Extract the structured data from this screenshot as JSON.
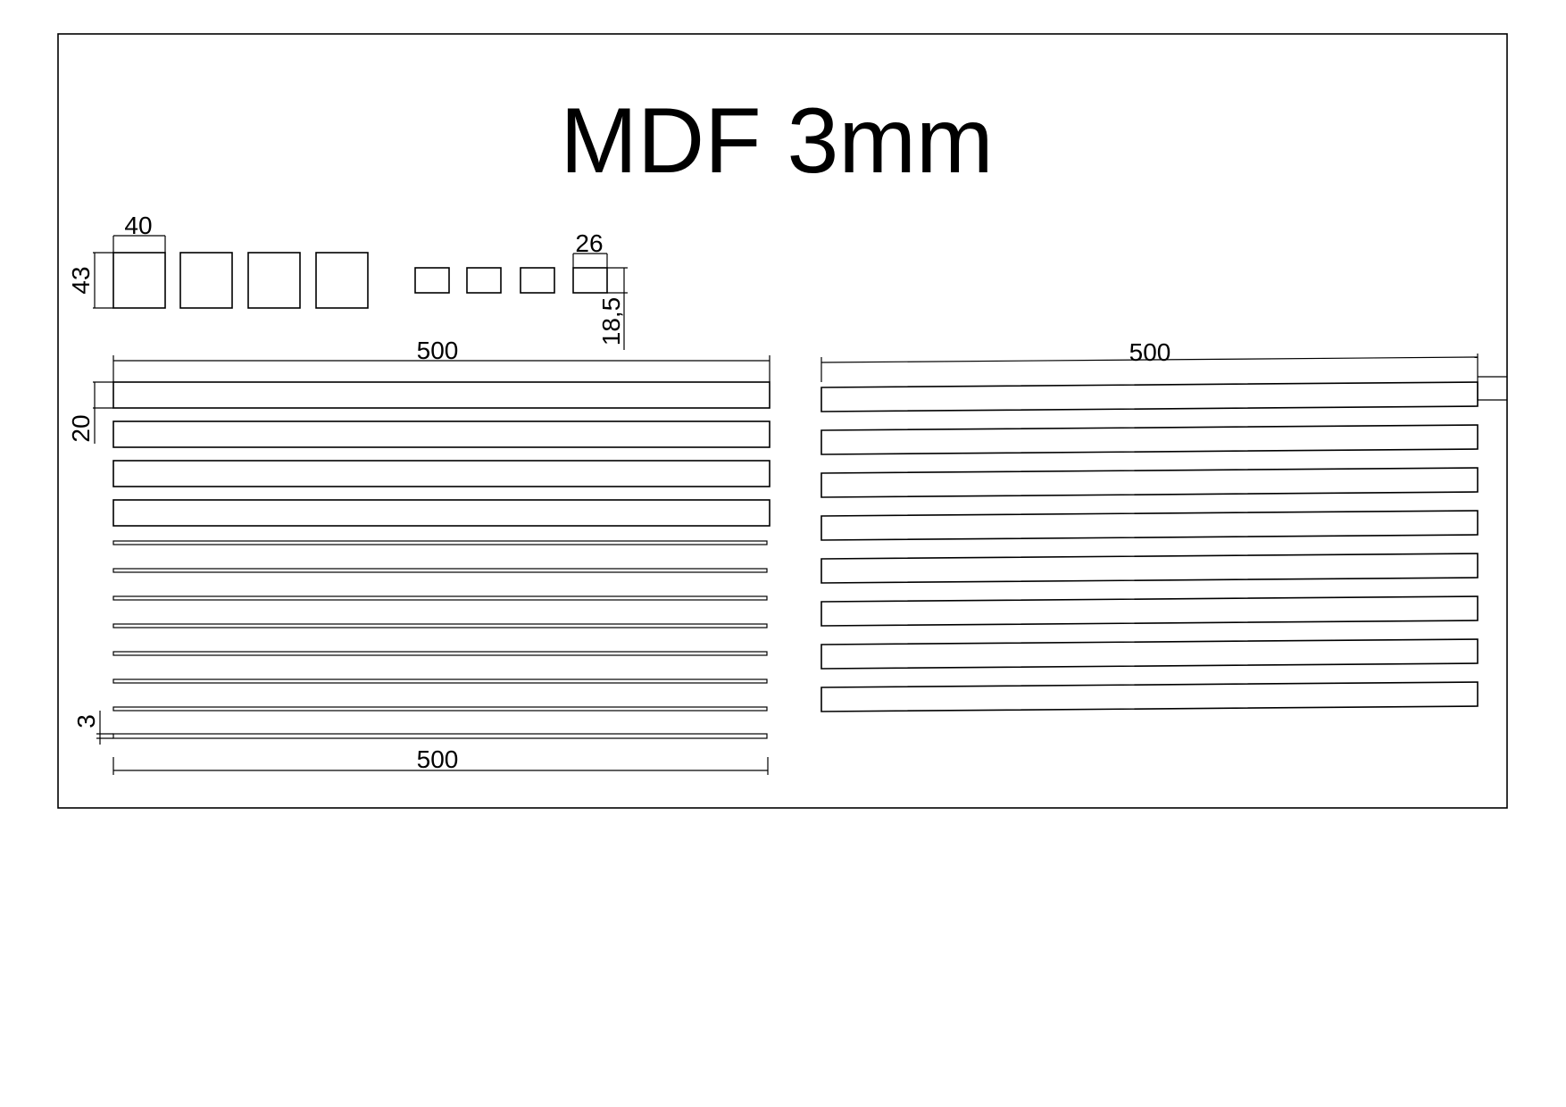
{
  "drawing": {
    "title": "MDF 3mm",
    "dimensions": {
      "square_width": "40",
      "square_height": "43",
      "small_width": "26",
      "small_height": "18,5",
      "strip_length_left": "500",
      "strip_length_left_bottom": "500",
      "strip_length_right": "500",
      "wide_strip_height": "20",
      "thin_strip_height": "3"
    }
  }
}
